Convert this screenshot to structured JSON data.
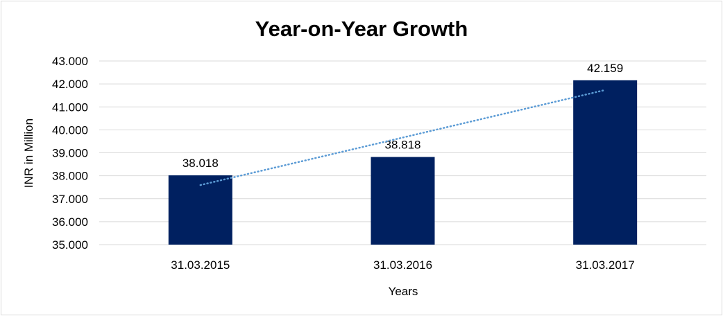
{
  "chart_data": {
    "type": "bar",
    "title": "Year-on-Year Growth",
    "xlabel": "Years",
    "ylabel": "INR in Million",
    "categories": [
      "31.03.2015",
      "31.03.2016",
      "31.03.2017"
    ],
    "values": [
      38.018,
      38.818,
      42.159
    ],
    "data_labels": [
      "38.018",
      "38.818",
      "42.159"
    ],
    "ylim": [
      35.0,
      43.0
    ],
    "y_ticks": [
      35.0,
      36.0,
      37.0,
      38.0,
      39.0,
      40.0,
      41.0,
      42.0,
      43.0
    ],
    "y_tick_labels": [
      "35.000",
      "36.000",
      "37.000",
      "38.000",
      "39.000",
      "40.000",
      "41.000",
      "42.000",
      "43.000"
    ],
    "grid": true,
    "legend": "none",
    "trendline": {
      "type": "linear",
      "style": "dotted"
    },
    "colors": {
      "bar": "#002060",
      "trendline": "#5b9bd5",
      "grid": "#d9d9d9"
    }
  }
}
